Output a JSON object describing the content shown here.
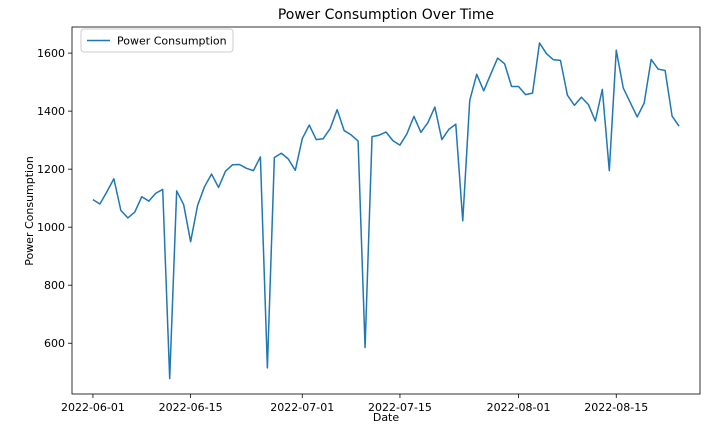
{
  "chart_data": {
    "type": "line",
    "title": "Power Consumption Over Time",
    "xlabel": "Date",
    "ylabel": "Power Consumption",
    "legend_position": "top-left",
    "grid": false,
    "color": "#1f77b4",
    "x_start": "2022-06-01",
    "xlim": [
      "2022-05-29",
      "2022-08-27"
    ],
    "ylim": [
      425,
      1690
    ],
    "x_ticks": [
      {
        "date": "2022-06-01",
        "label": "2022-06-01"
      },
      {
        "date": "2022-06-15",
        "label": "2022-06-15"
      },
      {
        "date": "2022-07-01",
        "label": "2022-07-01"
      },
      {
        "date": "2022-07-15",
        "label": "2022-07-15"
      },
      {
        "date": "2022-08-01",
        "label": "2022-08-01"
      },
      {
        "date": "2022-08-15",
        "label": "2022-08-15"
      }
    ],
    "y_ticks": [
      600,
      800,
      1000,
      1200,
      1400,
      1600
    ],
    "series": [
      {
        "name": "Power Consumption",
        "values": [
          1095,
          1080,
          1122,
          1167,
          1058,
          1032,
          1052,
          1105,
          1090,
          1117,
          1130,
          478,
          1125,
          1078,
          950,
          1075,
          1140,
          1183,
          1137,
          1193,
          1215,
          1216,
          1203,
          1195,
          1242,
          515,
          1240,
          1255,
          1235,
          1196,
          1305,
          1352,
          1302,
          1305,
          1340,
          1405,
          1333,
          1318,
          1297,
          585,
          1312,
          1317,
          1328,
          1298,
          1283,
          1322,
          1382,
          1327,
          1360,
          1414,
          1302,
          1337,
          1355,
          1022,
          1437,
          1527,
          1470,
          1527,
          1583,
          1563,
          1485,
          1485,
          1457,
          1462,
          1635,
          1598,
          1577,
          1575,
          1455,
          1420,
          1448,
          1423,
          1366,
          1475,
          1195,
          1610,
          1480,
          1430,
          1380,
          1428,
          1578,
          1545,
          1540,
          1383,
          1348
        ]
      }
    ]
  }
}
